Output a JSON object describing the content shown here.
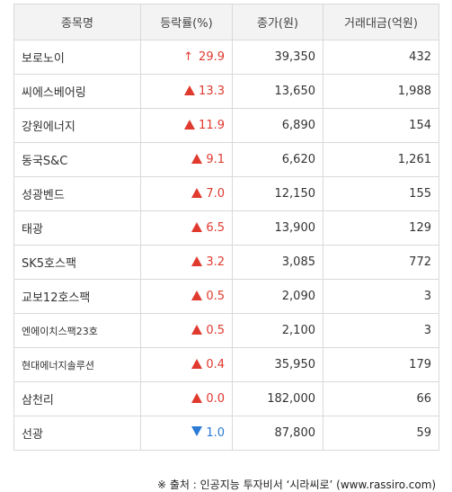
{
  "headers": [
    "종목명",
    "등락률(%)",
    "종가(원)",
    "거래대금(억원)"
  ],
  "rows": [
    {
      "name": "보로노이",
      "direction": "up-thin",
      "change": "29.9",
      "close": "39,350",
      "volume": "432"
    },
    {
      "name": "씨에스베어링",
      "direction": "up",
      "change": "13.3",
      "close": "13,650",
      "volume": "1,988"
    },
    {
      "name": "강원에너지",
      "direction": "up",
      "change": "11.9",
      "close": "6,890",
      "volume": "154"
    },
    {
      "name": "동국S&C",
      "direction": "up",
      "change": "9.1",
      "close": "6,620",
      "volume": "1,261"
    },
    {
      "name": "성광벤드",
      "direction": "up",
      "change": "7.0",
      "close": "12,150",
      "volume": "155"
    },
    {
      "name": "태광",
      "direction": "up",
      "change": "6.5",
      "close": "13,900",
      "volume": "129"
    },
    {
      "name": "SK5호스팩",
      "direction": "up",
      "change": "3.2",
      "close": "3,085",
      "volume": "772"
    },
    {
      "name": "교보12호스팩",
      "direction": "up",
      "change": "0.5",
      "close": "2,090",
      "volume": "3"
    },
    {
      "name": "엔에이치스팩23호",
      "direction": "up",
      "change": "0.5",
      "close": "2,100",
      "volume": "3"
    },
    {
      "name": "현대에너지솔루션",
      "direction": "up",
      "change": "0.4",
      "close": "35,950",
      "volume": "179"
    },
    {
      "name": "삼천리",
      "direction": "up",
      "change": "0.0",
      "close": "182,000",
      "volume": "66"
    },
    {
      "name": "선광",
      "direction": "down",
      "change": "1.0",
      "close": "87,800",
      "volume": "59"
    }
  ],
  "source": "※ 출처 : 인공지능 투자비서 ‘시라씨로’ (www.rassiro.com)",
  "colors": {
    "up": "#e03a2f",
    "down": "#2b7bd6",
    "header_bg": "#f3f3f3",
    "border": "#d9d9d9"
  }
}
